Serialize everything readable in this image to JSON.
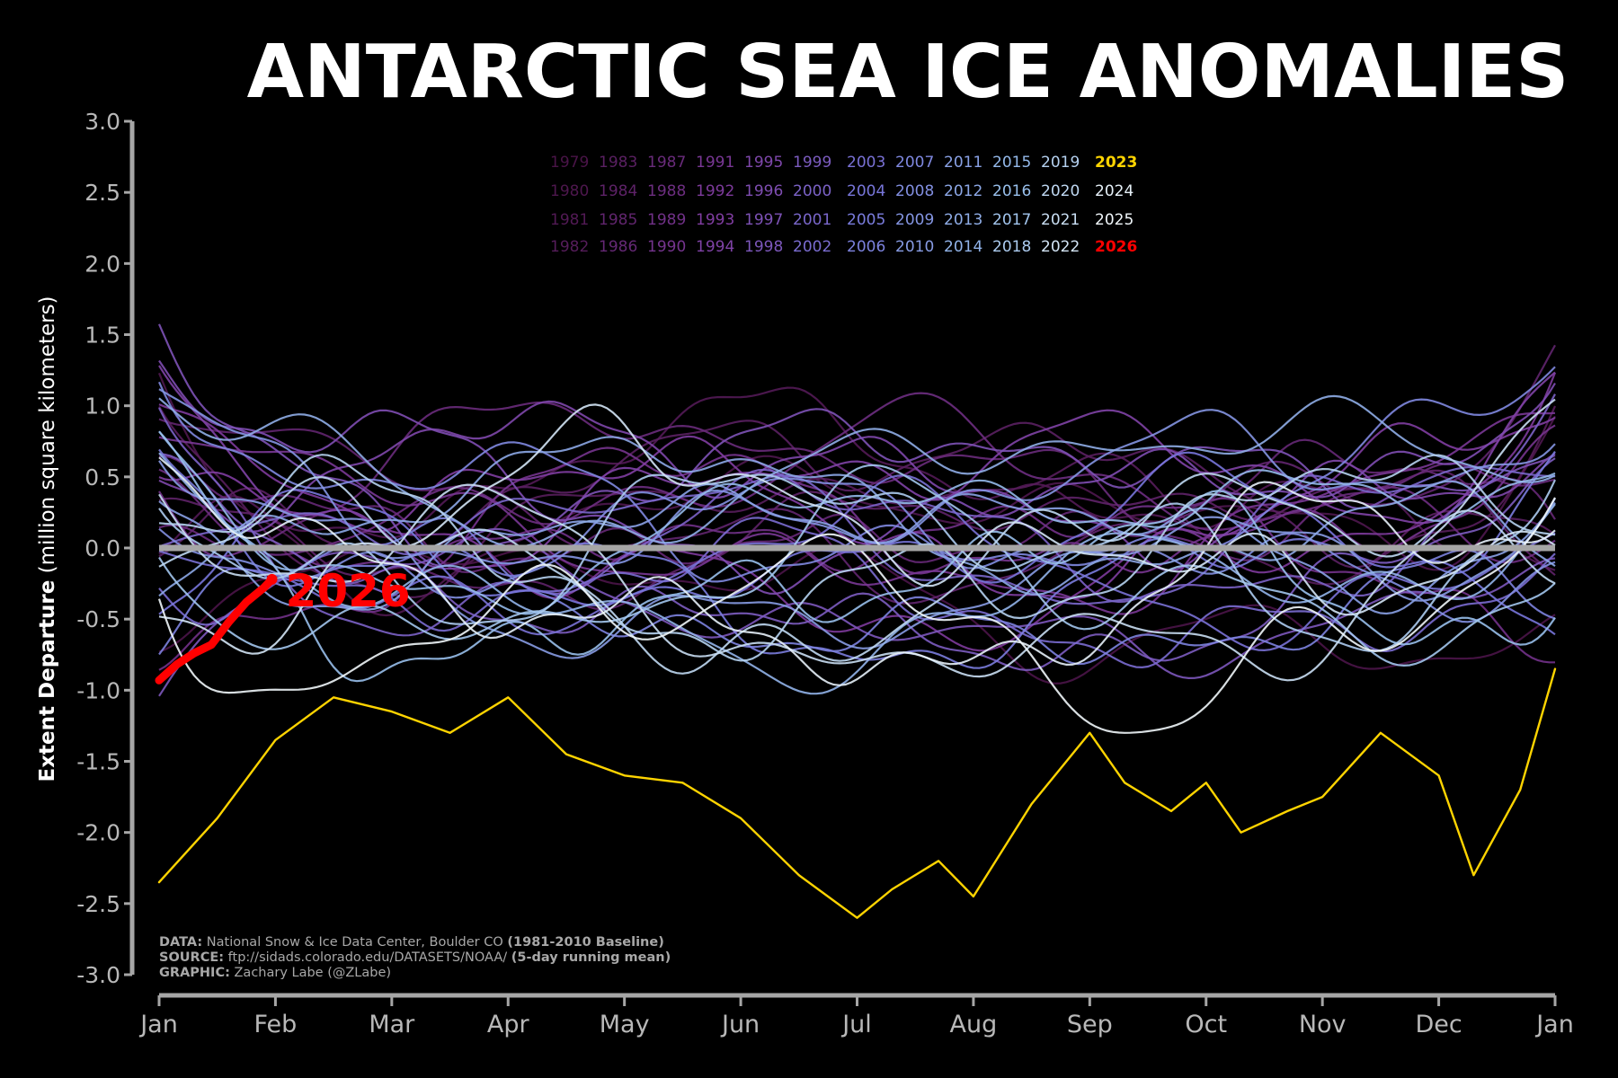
{
  "chart_data": {
    "type": "line",
    "title": "ANTARCTIC SEA ICE ANOMALIES",
    "ylabel_bold": "Extent Departure",
    "ylabel_rest": " (million square kilometers)",
    "xlabel": "",
    "ylim": [
      -3.0,
      3.0
    ],
    "yticks": [
      "3.0",
      "2.5",
      "2.0",
      "1.5",
      "1.0",
      "0.5",
      "0.0",
      "-0.5",
      "-1.0",
      "-1.5",
      "-2.0",
      "-2.5",
      "-3.0"
    ],
    "months": [
      "Jan",
      "Feb",
      "Mar",
      "Apr",
      "May",
      "Jun",
      "Jul",
      "Aug",
      "Sep",
      "Oct",
      "Nov",
      "Dec",
      "Jan"
    ],
    "legend_rows": [
      [
        "1979",
        "1983",
        "1987",
        "1991",
        "1995",
        "1999",
        "2003",
        "2007",
        "2011",
        "2015",
        "2019",
        "2023"
      ],
      [
        "1980",
        "1984",
        "1988",
        "1992",
        "1996",
        "2000",
        "2004",
        "2008",
        "2012",
        "2016",
        "2020",
        "2024"
      ],
      [
        "1981",
        "1985",
        "1989",
        "1993",
        "1997",
        "2001",
        "2005",
        "2009",
        "2013",
        "2017",
        "2021",
        "2025"
      ],
      [
        "1982",
        "1986",
        "1990",
        "1994",
        "1998",
        "2002",
        "2006",
        "2010",
        "2014",
        "2018",
        "2022",
        "2026"
      ]
    ],
    "highlight_colors": {
      "2023": "#ffd400",
      "2026": "#ff0000",
      "zero_line": "#a6a6a6"
    },
    "end_label": "2026",
    "key_series": [
      {
        "name": "2023",
        "x": [
          0,
          0.5,
          1,
          1.5,
          2,
          2.5,
          3,
          3.5,
          4,
          4.5,
          5,
          5.5,
          6,
          6.3,
          6.7,
          7,
          7.5,
          8,
          8.3,
          8.7,
          9,
          9.3,
          9.7,
          10,
          10.5,
          11,
          11.3,
          11.7,
          12
        ],
        "values": [
          -2.35,
          -1.9,
          -1.35,
          -1.05,
          -1.15,
          -1.3,
          -1.05,
          -1.45,
          -1.6,
          -1.65,
          -1.9,
          -2.3,
          -2.6,
          -2.4,
          -2.2,
          -2.45,
          -1.8,
          -1.3,
          -1.65,
          -1.85,
          -1.65,
          -2.0,
          -1.85,
          -1.75,
          -1.3,
          -1.6,
          -2.3,
          -1.7,
          -0.85
        ]
      },
      {
        "name": "2026",
        "x": [
          0,
          0.15,
          0.3,
          0.45,
          0.6,
          0.75,
          0.9,
          0.97
        ],
        "values": [
          -0.93,
          -0.82,
          -0.74,
          -0.68,
          -0.52,
          -0.38,
          -0.28,
          -0.22
        ]
      }
    ]
  },
  "credits": [
    {
      "label": "DATA:",
      "text": " National Snow & Ice Data Center, Boulder CO ",
      "bold_tail": "(1981-2010 Baseline)"
    },
    {
      "label": "SOURCE:",
      "text": " ftp://sidads.colorado.edu/DATASETS/NOAA/ ",
      "bold_tail": "(5-day running mean)"
    },
    {
      "label": "GRAPHIC:",
      "text": " Zachary Labe (@ZLabe)",
      "bold_tail": ""
    }
  ]
}
